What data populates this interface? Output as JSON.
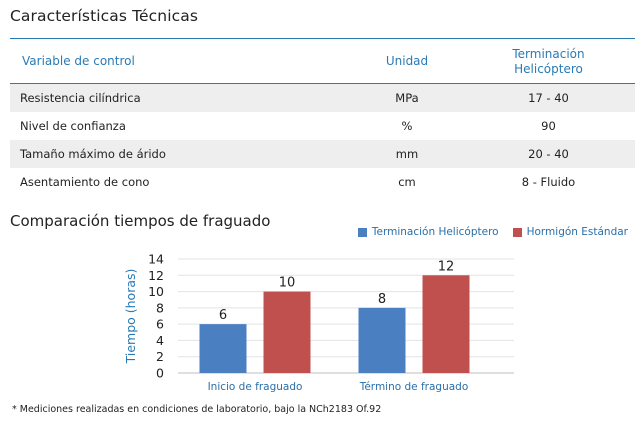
{
  "specs": {
    "title": "Características Técnicas",
    "headers": {
      "variable": "Variable de control",
      "unit": "Unidad",
      "value_line1": "Terminación",
      "value_line2": "Helicóptero"
    },
    "rows": [
      {
        "variable": "Resistencia cilíndrica",
        "unit": "MPa",
        "value": "17 - 40"
      },
      {
        "variable": "Nivel de confianza",
        "unit": "%",
        "value": "90"
      },
      {
        "variable": "Tamaño máximo de árido",
        "unit": "mm",
        "value": "20 - 40"
      },
      {
        "variable": "Asentamiento de cono",
        "unit": "cm",
        "value": "8 - Fluido"
      }
    ]
  },
  "chart_section": {
    "title": "Comparación tiempos de fraguado"
  },
  "chart_data": {
    "type": "bar",
    "categories": [
      "Inicio de fraguado",
      "Término de fraguado"
    ],
    "series": [
      {
        "name": "Terminación Helicóptero",
        "values": [
          6,
          8
        ],
        "color": "#4a7fc1"
      },
      {
        "name": "Hormigón Estándar",
        "values": [
          10,
          12
        ],
        "color": "#c0504d"
      }
    ],
    "ylabel": "Tiempo (horas)",
    "ylim": [
      0,
      14
    ],
    "yticks": [
      0,
      2,
      4,
      6,
      8,
      10,
      12,
      14
    ],
    "grid": true,
    "legend": "top-right"
  },
  "footnote": "* Mediciones realizadas en condiciones de laboratorio, bajo la NCh2183 Of.92"
}
